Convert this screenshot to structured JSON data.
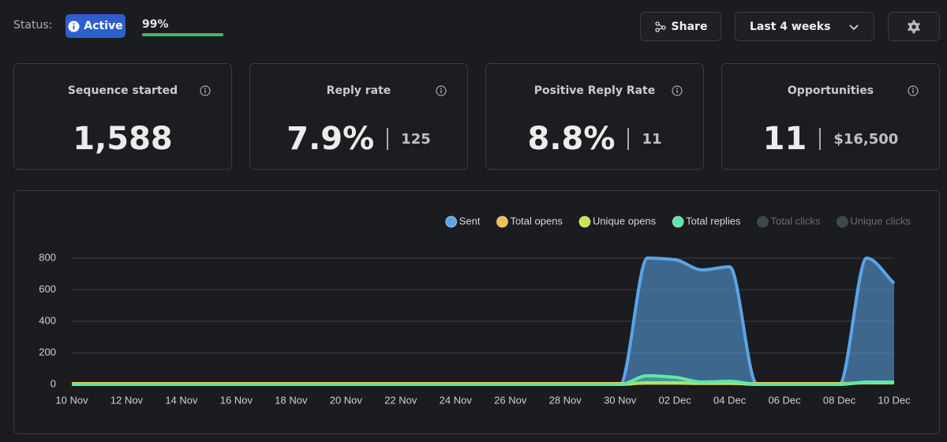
{
  "status": {
    "label": "Status:",
    "badge": "Active",
    "progress": {
      "value": 99,
      "label": "99%"
    }
  },
  "toolbar": {
    "share": "Share",
    "range": "Last 4 weeks"
  },
  "cards": [
    {
      "title": "Sequence started",
      "value": "1,588"
    },
    {
      "title": "Reply rate",
      "value": "7.9%",
      "secondary": "125"
    },
    {
      "title": "Positive Reply Rate",
      "value": "8.8%",
      "secondary": "11"
    },
    {
      "title": "Opportunities",
      "value": "11",
      "secondary": "$16,500"
    }
  ],
  "chart_data": {
    "type": "area",
    "categories": [
      "10 Nov",
      null,
      "12 Nov",
      null,
      "14 Nov",
      null,
      "16 Nov",
      null,
      "18 Nov",
      null,
      "20 Nov",
      null,
      "22 Nov",
      null,
      "24 Nov",
      null,
      "26 Nov",
      null,
      "28 Nov",
      null,
      "30 Nov",
      null,
      "02 Dec",
      null,
      "04 Dec",
      null,
      "06 Dec",
      null,
      "08 Dec",
      null,
      "10 Dec"
    ],
    "series": [
      {
        "name": "Sent",
        "color": "#5aa5e8",
        "values": [
          0,
          0,
          0,
          0,
          0,
          0,
          0,
          0,
          0,
          0,
          0,
          0,
          0,
          0,
          0,
          0,
          0,
          0,
          0,
          0,
          0,
          800,
          790,
          725,
          745,
          0,
          0,
          0,
          0,
          800,
          640
        ]
      },
      {
        "name": "Total opens",
        "color": "#f2c14e",
        "values": [
          5,
          5,
          5,
          5,
          5,
          5,
          5,
          5,
          5,
          5,
          5,
          5,
          5,
          5,
          5,
          5,
          5,
          5,
          5,
          5,
          5,
          8,
          8,
          6,
          6,
          5,
          5,
          5,
          5,
          10,
          10
        ]
      },
      {
        "name": "Unique opens",
        "color": "#c6e84e",
        "values": [
          0,
          0,
          0,
          0,
          0,
          0,
          0,
          0,
          0,
          0,
          0,
          0,
          0,
          0,
          0,
          0,
          0,
          0,
          0,
          0,
          0,
          10,
          10,
          8,
          8,
          0,
          0,
          0,
          0,
          12,
          12
        ]
      },
      {
        "name": "Total replies",
        "color": "#5ee8a8",
        "values": [
          0,
          0,
          0,
          0,
          0,
          0,
          0,
          0,
          0,
          0,
          0,
          0,
          0,
          0,
          0,
          0,
          0,
          0,
          0,
          0,
          0,
          55,
          45,
          15,
          20,
          0,
          0,
          0,
          0,
          15,
          15
        ]
      },
      {
        "name": "Total clicks",
        "color": "#3b4a46",
        "hidden": true
      },
      {
        "name": "Unique clicks",
        "color": "#3b4a46",
        "hidden": true
      }
    ],
    "ylim": [
      0,
      800
    ],
    "yticks": [
      0,
      200,
      400,
      600,
      800
    ],
    "grid": true
  }
}
